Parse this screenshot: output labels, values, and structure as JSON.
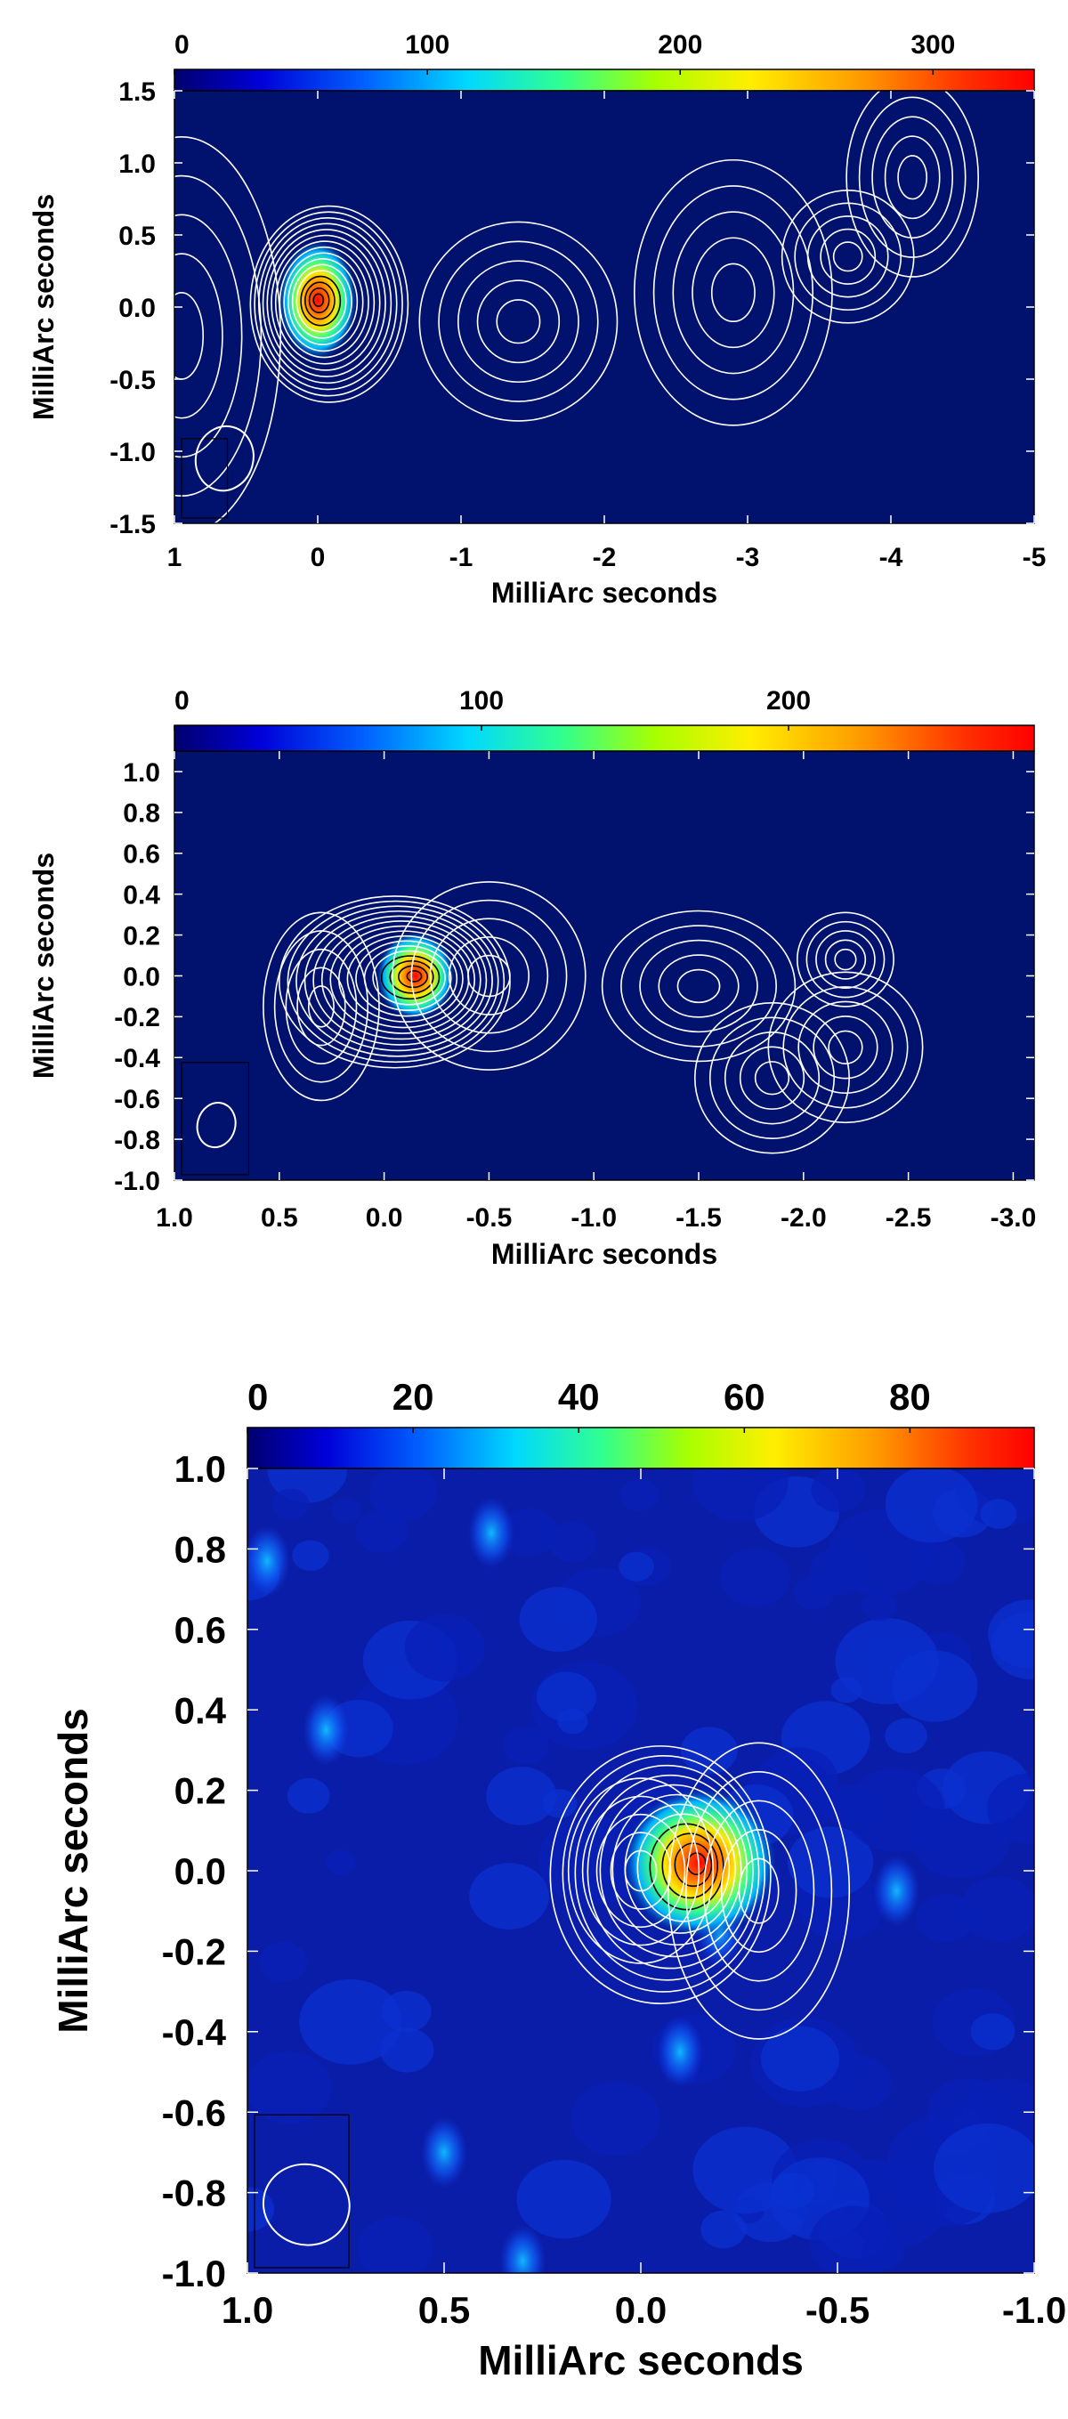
{
  "chart_data": [
    {
      "type": "heatmap",
      "title": "",
      "xlabel": "MilliArc seconds",
      "ylabel": "MilliArc seconds",
      "xlim": [
        1,
        -5
      ],
      "ylim": [
        -1.5,
        1.5
      ],
      "x_ticks": [
        "1",
        "0",
        "-1",
        "-2",
        "-3",
        "-4",
        "-5"
      ],
      "x_tick_values": [
        1,
        0,
        -1,
        -2,
        -3,
        -4,
        -5
      ],
      "y_ticks": [
        "-1.5",
        "-1.0",
        "-0.5",
        "0.0",
        "0.5",
        "1.0",
        "1.5"
      ],
      "y_tick_values": [
        -1.5,
        -1.0,
        -0.5,
        0.0,
        0.5,
        1.0,
        1.5
      ],
      "colorbar": {
        "range": [
          0,
          340
        ],
        "ticks": [
          "0",
          "100",
          "200",
          "300"
        ],
        "tick_values": [
          0,
          100,
          200,
          300
        ]
      },
      "peak": {
        "x": 0.0,
        "y": 0.05,
        "value": 330
      },
      "components": [
        {
          "x": 0.95,
          "y": -0.2,
          "dx": 0.15,
          "dy": 0.3
        },
        {
          "x": -1.4,
          "y": -0.1,
          "dx": 0.15,
          "dy": 0.15
        },
        {
          "x": -2.9,
          "y": 0.1,
          "dx": 0.15,
          "dy": 0.2
        },
        {
          "x": -3.7,
          "y": 0.35,
          "dx": 0.1,
          "dy": 0.1
        },
        {
          "x": -4.15,
          "y": 0.9,
          "dx": 0.1,
          "dy": 0.15
        }
      ],
      "beam": {
        "x": 0.65,
        "y": -1.05,
        "major": 0.45,
        "minor": 0.2
      }
    },
    {
      "type": "heatmap",
      "title": "",
      "xlabel": "MilliArc seconds",
      "ylabel": "MilliArc seconds",
      "xlim": [
        1.0,
        -3.1
      ],
      "ylim": [
        -1.0,
        1.1
      ],
      "x_ticks": [
        "1.0",
        "0.5",
        "0.0",
        "-0.5",
        "-1.0",
        "-1.5",
        "-2.0",
        "-2.5",
        "-3.0"
      ],
      "x_tick_values": [
        1.0,
        0.5,
        0.0,
        -0.5,
        -1.0,
        -1.5,
        -2.0,
        -2.5,
        -3.0
      ],
      "y_ticks": [
        "-1.0",
        "-0.8",
        "-0.6",
        "-0.4",
        "-0.2",
        "0.0",
        "0.2",
        "0.4",
        "0.6",
        "0.8",
        "1.0"
      ],
      "y_tick_values": [
        -1.0,
        -0.8,
        -0.6,
        -0.4,
        -0.2,
        0.0,
        0.2,
        0.4,
        0.6,
        0.8,
        1.0
      ],
      "colorbar": {
        "range": [
          0,
          280
        ],
        "ticks": [
          "0",
          "100",
          "200"
        ],
        "tick_values": [
          0,
          100,
          200
        ]
      },
      "peak": {
        "x": -0.15,
        "y": 0.0,
        "value": 270
      },
      "components": [
        {
          "x": 0.3,
          "y": -0.15,
          "dx": 0.06,
          "dy": 0.1
        },
        {
          "x": -0.5,
          "y": 0.0,
          "dx": 0.1,
          "dy": 0.1
        },
        {
          "x": -1.5,
          "y": -0.05,
          "dx": 0.1,
          "dy": 0.08
        },
        {
          "x": -1.85,
          "y": -0.5,
          "dx": 0.08,
          "dy": 0.08
        },
        {
          "x": -2.2,
          "y": -0.35,
          "dx": 0.08,
          "dy": 0.08
        },
        {
          "x": -2.2,
          "y": 0.08,
          "dx": 0.05,
          "dy": 0.05
        }
      ],
      "beam": {
        "x": 0.8,
        "y": -0.73,
        "major": 0.22,
        "minor": 0.09
      }
    },
    {
      "type": "heatmap",
      "title": "",
      "xlabel": "MilliArc seconds",
      "ylabel": "MilliArc seconds",
      "xlim": [
        1.0,
        -1.0
      ],
      "ylim": [
        -1.0,
        1.0
      ],
      "x_ticks": [
        "1.0",
        "0.5",
        "0.0",
        "-0.5",
        "-1.0"
      ],
      "x_tick_values": [
        1.0,
        0.5,
        0.0,
        -0.5,
        -1.0
      ],
      "y_ticks": [
        "-1.0",
        "-0.8",
        "-0.6",
        "-0.4",
        "-0.2",
        "0.0",
        "0.2",
        "0.4",
        "0.6",
        "0.8",
        "1.0"
      ],
      "y_tick_values": [
        -1.0,
        -0.8,
        -0.6,
        -0.4,
        -0.2,
        0.0,
        0.2,
        0.4,
        0.6,
        0.8,
        1.0
      ],
      "colorbar": {
        "range": [
          0,
          95
        ],
        "ticks": [
          "0",
          "20",
          "40",
          "60",
          "80"
        ],
        "tick_values": [
          0,
          20,
          40,
          60,
          80
        ]
      },
      "peak": {
        "x": -0.15,
        "y": 0.02,
        "value": 90
      },
      "components": [
        {
          "x": 0.0,
          "y": 0.0,
          "dx": 0.04,
          "dy": 0.05
        },
        {
          "x": -0.3,
          "y": -0.05,
          "dx": 0.05,
          "dy": 0.08
        }
      ],
      "beam": {
        "x": 0.85,
        "y": -0.83,
        "major": 0.2,
        "minor": 0.11
      }
    }
  ]
}
